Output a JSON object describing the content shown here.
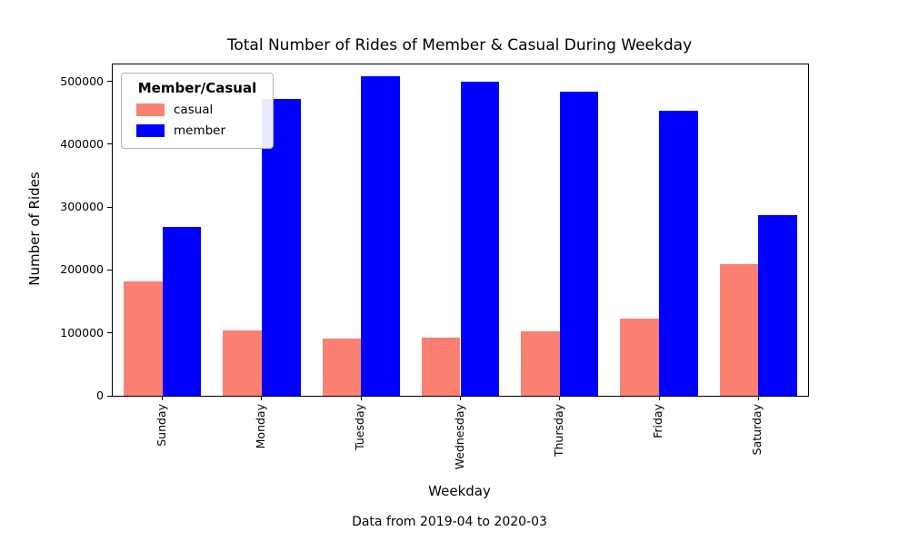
{
  "figure": {
    "title": "Total Number of Rides of Member & Casual During Weekday",
    "ylabel": "Number of Rides",
    "xlabel": "Weekday",
    "caption": "Data from 2019-04 to 2020-03",
    "legend": {
      "title": "Member/Casual",
      "entries": [
        {
          "label": "casual",
          "color": "#fa8072"
        },
        {
          "label": "member",
          "color": "#0000ff"
        }
      ]
    }
  },
  "chart_data": {
    "type": "bar",
    "title": "Total Number of Rides of Member & Casual During Weekday",
    "xlabel": "Weekday",
    "ylabel": "Number of Rides",
    "annotation": "Data from 2019-04 to 2020-03",
    "categories": [
      "Sunday",
      "Monday",
      "Tuesday",
      "Wednesday",
      "Thursday",
      "Friday",
      "Saturday"
    ],
    "series": [
      {
        "name": "casual",
        "color": "#fa8072",
        "values": [
          182000,
          104000,
          91000,
          93000,
          103000,
          123000,
          209000
        ]
      },
      {
        "name": "member",
        "color": "#0000ff",
        "values": [
          268000,
          472000,
          508000,
          500000,
          484000,
          453000,
          288000
        ]
      }
    ],
    "ylim": [
      0,
      527000
    ],
    "yticks": [
      0,
      100000,
      200000,
      300000,
      400000,
      500000
    ],
    "grid": false,
    "legend_title": "Member/Casual",
    "legend_position": "upper left",
    "xtick_rotation": 90
  }
}
